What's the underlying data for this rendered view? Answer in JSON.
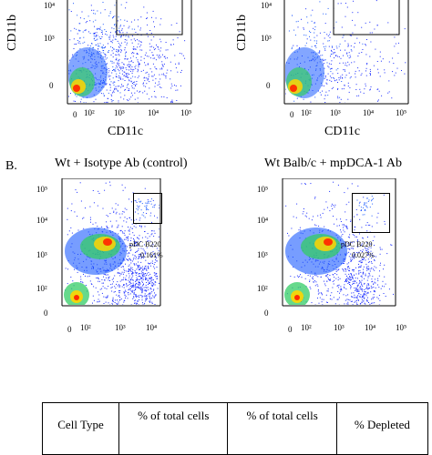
{
  "figure": {
    "panel_b_label": "B.",
    "panel_a": {
      "left": {
        "ylabel": "CD11b",
        "xlabel": "CD11c",
        "y_ticks": [
          "10⁴",
          "10³",
          "0"
        ],
        "x_ticks": [
          "0",
          "10²",
          "10³",
          "10⁴",
          "10⁵"
        ]
      },
      "right": {
        "ylabel": "CD11b",
        "xlabel": "CD11c",
        "y_ticks": [
          "10⁴",
          "10³",
          "0"
        ],
        "x_ticks": [
          "0",
          "10²",
          "10³",
          "10⁴",
          "10⁵"
        ]
      }
    },
    "panel_b": {
      "left": {
        "title": "Wt + Isotype Ab (control)",
        "y_ticks": [
          "10⁵",
          "10⁴",
          "10³",
          "10²",
          "0"
        ],
        "x_ticks": [
          "0",
          "10²",
          "10³",
          "10⁴"
        ],
        "gate_name": "pDC B220",
        "gate_pct": "0.161%"
      },
      "right": {
        "title": "Wt Balb/c + mpDCA-1 Ab",
        "y_ticks": [
          "10⁵",
          "10⁴",
          "10³",
          "10²",
          "0"
        ],
        "x_ticks": [
          "0",
          "10²",
          "10³",
          "10⁴",
          "10⁵"
        ],
        "gate_name": "pDC B220",
        "gate_pct": "0.027%"
      }
    },
    "table": {
      "headers": [
        "Cell Type",
        "% of total cells",
        "% of total cells",
        "% Depleted"
      ]
    }
  },
  "colors": {
    "hot": "#ff2a00",
    "warm": "#ffd400",
    "mid": "#33cc66",
    "cool": "#1d5cff",
    "sparse": "#1a2cff"
  }
}
